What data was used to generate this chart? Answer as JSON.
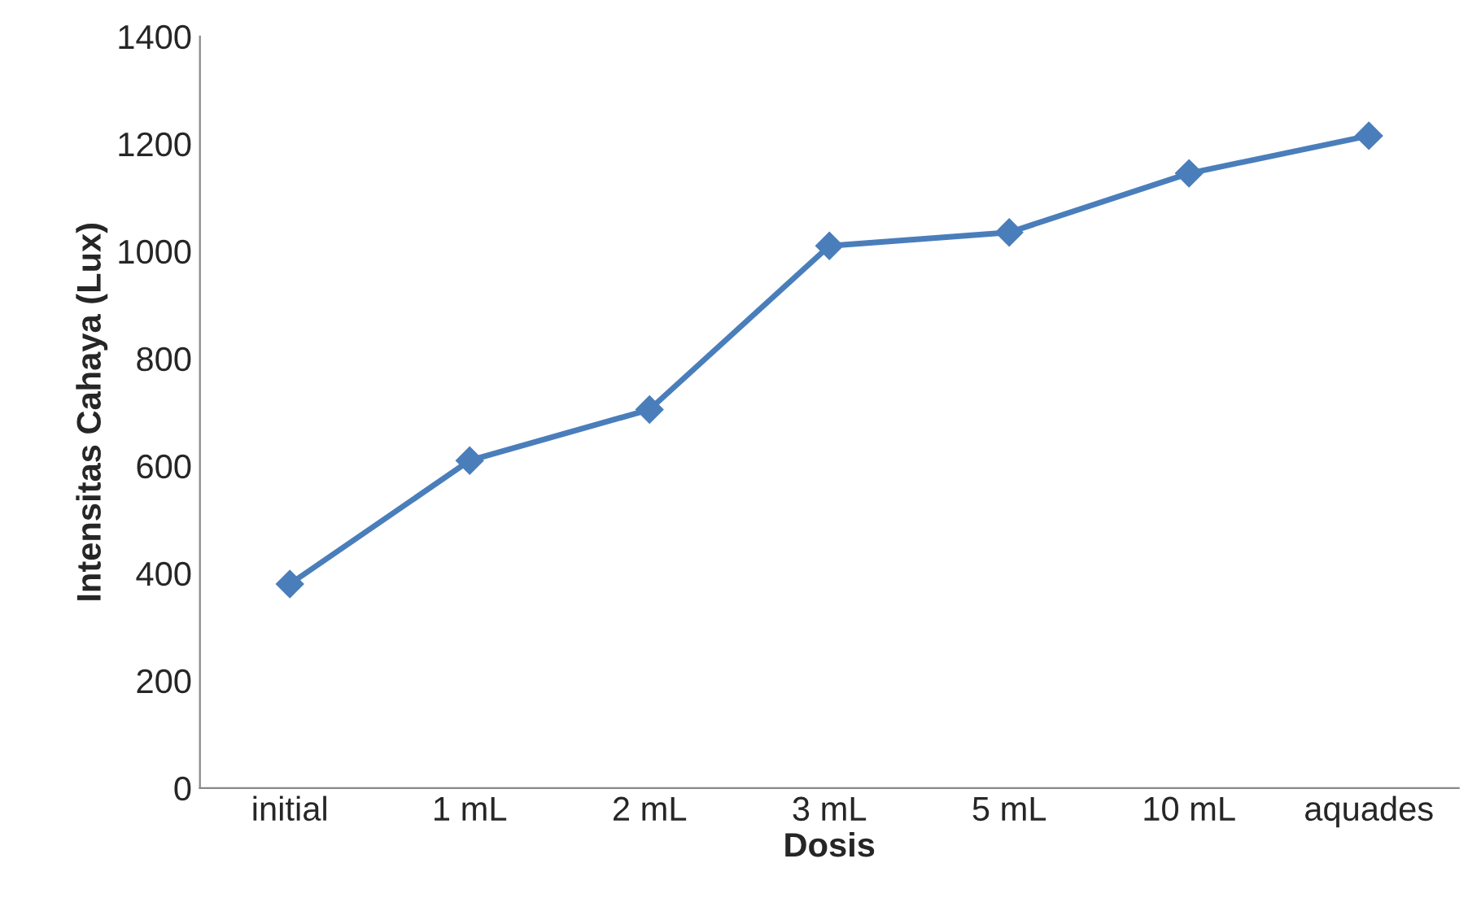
{
  "chart_data": {
    "type": "line",
    "xlabel": "Dosis",
    "ylabel": "Intensitas Cahaya (Lux)",
    "categories": [
      "initial",
      "1 mL",
      "2 mL",
      "3 mL",
      "5 mL",
      "10 mL",
      "aquades"
    ],
    "series": [
      {
        "color": "#4a7ebb",
        "values": [
          380,
          610,
          705,
          1010,
          1035,
          1145,
          1215
        ]
      }
    ],
    "ylim": [
      0,
      1400
    ],
    "yticks": [
      0,
      200,
      400,
      600,
      800,
      1000,
      1200,
      1400
    ],
    "marker": "diamond",
    "line_style": "solid",
    "grid": false,
    "legend": false
  }
}
